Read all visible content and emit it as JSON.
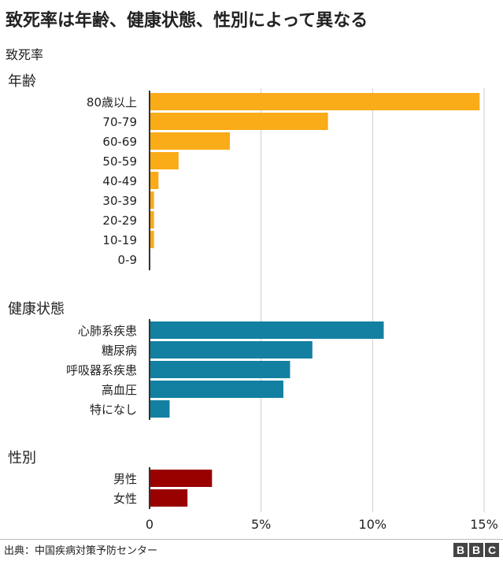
{
  "title": "致死率は年齢、健康状態、性別によって異なる",
  "subtitle": "致死率",
  "source": "出典：中国疾病対策予防センター",
  "logo": [
    "B",
    "B",
    "C"
  ],
  "colors": {
    "age": "#FAAB18",
    "health": "#1380A1",
    "sex": "#990000",
    "grid": "#cbcbcb",
    "axis": "#333333"
  },
  "chart_data": {
    "type": "bar",
    "orientation": "horizontal",
    "xlim": [
      0,
      15
    ],
    "x_ticks": [
      {
        "value": 0,
        "label": "0"
      },
      {
        "value": 5,
        "label": "5%"
      },
      {
        "value": 10,
        "label": "10%"
      },
      {
        "value": 15,
        "label": "15%"
      }
    ],
    "grid": true,
    "groups": [
      {
        "name": "年齢",
        "color_key": "age",
        "categories": [
          "80歳以上",
          "70-79",
          "60-69",
          "50-59",
          "40-49",
          "30-39",
          "20-29",
          "10-19",
          "0-9"
        ],
        "values": [
          14.8,
          8.0,
          3.6,
          1.3,
          0.4,
          0.2,
          0.2,
          0.2,
          0.0
        ]
      },
      {
        "name": "健康状態",
        "color_key": "health",
        "categories": [
          "心肺系疾患",
          "糖尿病",
          "呼吸器系疾患",
          "高血圧",
          "特になし"
        ],
        "values": [
          10.5,
          7.3,
          6.3,
          6.0,
          0.9
        ]
      },
      {
        "name": "性別",
        "color_key": "sex",
        "categories": [
          "男性",
          "女性"
        ],
        "values": [
          2.8,
          1.7
        ]
      }
    ]
  }
}
